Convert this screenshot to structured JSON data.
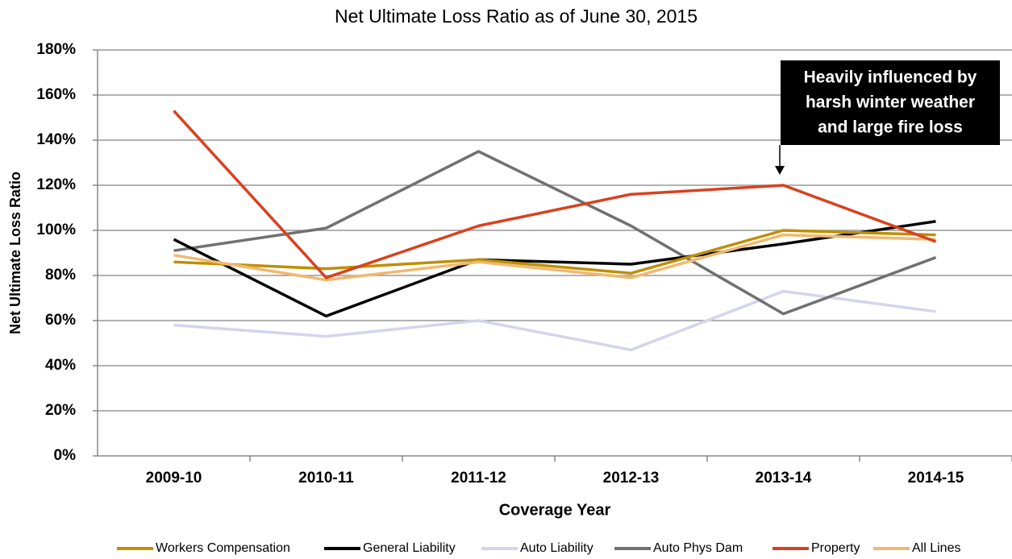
{
  "chart_data": {
    "type": "line",
    "title": "Net Ultimate Loss Ratio as of June 30, 2015",
    "x_label": "Coverage Year",
    "y_label": "Net Ultimate Loss Ratio",
    "categories": [
      "2009-10",
      "2010-11",
      "2011-12",
      "2012-13",
      "2013-14",
      "2014-15"
    ],
    "series": [
      {
        "name": "Workers Compensation",
        "color": "#bf8f00",
        "values": [
          86,
          83,
          87,
          81,
          100,
          98
        ]
      },
      {
        "name": "General Liability",
        "color": "#000000",
        "values": [
          96,
          62,
          87,
          85,
          94,
          104
        ]
      },
      {
        "name": "Auto Liability",
        "color": "#d4d4f0",
        "values": [
          58,
          53,
          60,
          47,
          73,
          64
        ]
      },
      {
        "name": "Auto Phys Dam",
        "color": "#707070",
        "values": [
          91,
          101,
          135,
          102,
          63,
          88
        ]
      },
      {
        "name": "Property",
        "color": "#d9411e",
        "values": [
          153,
          79,
          102,
          116,
          120,
          95
        ]
      },
      {
        "name": "All Lines",
        "color": "#f0b870",
        "values": [
          89,
          78,
          86,
          79,
          98,
          96
        ]
      }
    ],
    "ylim": [
      0,
      180
    ],
    "yticks": [
      {
        "value": 0,
        "label": "0%"
      },
      {
        "value": 20,
        "label": "20%"
      },
      {
        "value": 40,
        "label": "40%"
      },
      {
        "value": 60,
        "label": "60%"
      },
      {
        "value": 80,
        "label": "80%"
      },
      {
        "value": 100,
        "label": "100%"
      },
      {
        "value": 120,
        "label": "120%"
      },
      {
        "value": 140,
        "label": "140%"
      },
      {
        "value": 160,
        "label": "160%"
      },
      {
        "value": 180,
        "label": "180%"
      }
    ],
    "grid": true,
    "legend": "bottom",
    "annotation": [
      "Heavily influenced by",
      "harsh winter weather",
      "and large fire loss"
    ]
  }
}
